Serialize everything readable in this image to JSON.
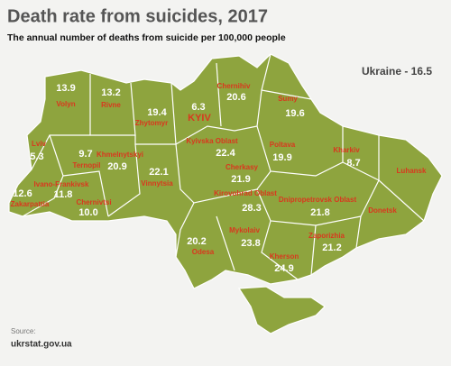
{
  "header": {
    "title": "Death rate from suicides, 2017",
    "subtitle": "The annual number of deaths from suicide per 100,000 people"
  },
  "national": "Ukraine - 16.5",
  "regions": [
    {
      "name": "Volyn",
      "value": "13.9"
    },
    {
      "name": "Rivne",
      "value": "13.2"
    },
    {
      "name": "Zhytomyr",
      "value": "19.4"
    },
    {
      "name": "KYIV",
      "value": "6.3"
    },
    {
      "name": "Chernihiv",
      "value": "20.6"
    },
    {
      "name": "Sumy",
      "value": "19.6"
    },
    {
      "name": "Lviv",
      "value": "5.3"
    },
    {
      "name": "Ternopil",
      "value": "9.7"
    },
    {
      "name": "Khmelnytskyi",
      "value": "20.9"
    },
    {
      "name": "Kyivska Oblast",
      "value": "22.4"
    },
    {
      "name": "Poltava",
      "value": "19.9"
    },
    {
      "name": "Kharkiv",
      "value": "8.7"
    },
    {
      "name": "Luhansk"
    },
    {
      "name": "Vinnytsia",
      "value": "22.1"
    },
    {
      "name": "Cherkasy",
      "value": "21.9"
    },
    {
      "name": "Ivano-Frankivsk",
      "value": "11.8"
    },
    {
      "name": "Zakarpattia",
      "value": "12.6"
    },
    {
      "name": "Chernivtsi",
      "value": "10.0"
    },
    {
      "name": "Kirovohrad Oblast",
      "value": "28.3"
    },
    {
      "name": "Dnipropetrovsk Oblast",
      "value": "21.8"
    },
    {
      "name": "Donetsk"
    },
    {
      "name": "Odesa",
      "value": "20.2"
    },
    {
      "name": "Mykolaiv",
      "value": "23.8"
    },
    {
      "name": "Zaporizhia",
      "value": "21.2"
    },
    {
      "name": "Kherson",
      "value": "24.9"
    }
  ],
  "source": {
    "label": "Source:",
    "url": "ukrstat.gov.ua"
  }
}
